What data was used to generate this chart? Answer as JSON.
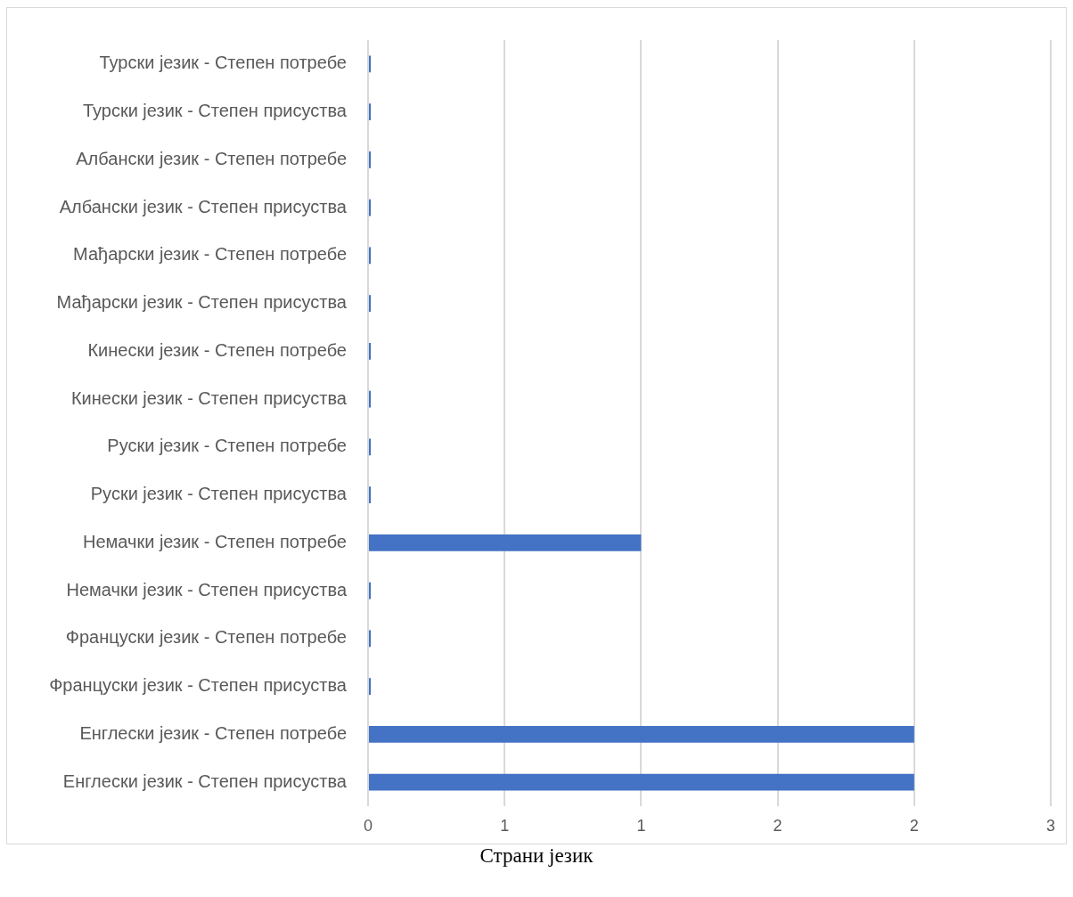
{
  "chart_data": {
    "type": "bar",
    "orientation": "horizontal",
    "categories": [
      "Турски језик - Степен потребе",
      "Турски језик - Степен присуства",
      "Албански језик - Степен потребе",
      "Албански језик - Степен присуства",
      "Мађарски језик - Степен потребе",
      "Мађарски језик - Степен присуства",
      "Кинески језик - Степен потребе",
      "Кинески језик - Степен присуства",
      "Руски језик - Степен потребе",
      "Руски језик - Степен присуства",
      "Немачки језик - Степен потребе",
      "Немачки језик - Степен присуства",
      "Француски језик - Степен потребе",
      "Француски језик - Степен присуства",
      "Енглески језик - Степен потребе",
      "Енглески језик - Степен присуства"
    ],
    "values": [
      0.01,
      0.01,
      0.01,
      0.01,
      0.01,
      0.01,
      0.01,
      0.01,
      0.01,
      0.01,
      1,
      0.01,
      0.01,
      0.01,
      2,
      2
    ],
    "color": "#4472c4",
    "xlim": [
      0,
      2.5
    ],
    "xticks": [
      0,
      {
        "value": 0.5,
        "label": "1"
      },
      1,
      {
        "value": 1.5,
        "label": "2"
      },
      2,
      {
        "value": 2.5,
        "label": "3"
      }
    ],
    "grid": "x",
    "annotations": [
      "Страни језик"
    ]
  }
}
